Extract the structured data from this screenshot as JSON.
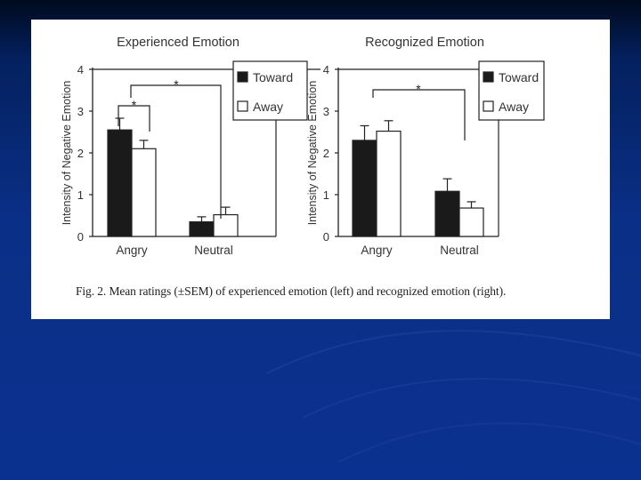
{
  "slide": {
    "background_colors": [
      "#000a1e",
      "#0a2f86"
    ],
    "caption": "Fig. 2. Mean ratings (±SEM) of experienced emotion (left) and recognized emotion (right)."
  },
  "chart_data": [
    {
      "type": "bar",
      "title": "Experienced Emotion",
      "ylabel": "Intensity of Negative Emotion",
      "xlabel": "",
      "categories": [
        "Angry",
        "Neutral"
      ],
      "yticks": [
        "0",
        "1",
        "2",
        "3",
        "4"
      ],
      "ylim": [
        0,
        4
      ],
      "series": [
        {
          "name": "Toward",
          "color": "#1a1a1a",
          "values": [
            2.55,
            0.35
          ],
          "errors": [
            0.28,
            0.12
          ]
        },
        {
          "name": "Away",
          "color": "#ffffff",
          "values": [
            2.1,
            0.52
          ],
          "errors": [
            0.2,
            0.18
          ]
        }
      ],
      "legend": "top-right",
      "annotations": [
        {
          "text": "*",
          "between": "Angry-Toward / Angry-Away"
        },
        {
          "text": "*",
          "between": "Angry-Toward / Neutral-Toward"
        }
      ]
    },
    {
      "type": "bar",
      "title": "Recognized Emotion",
      "ylabel": "Intensity of Negative Emotion",
      "xlabel": "",
      "categories": [
        "Angry",
        "Neutral"
      ],
      "yticks": [
        "0",
        "1",
        "2",
        "3",
        "4"
      ],
      "ylim": [
        0,
        4
      ],
      "series": [
        {
          "name": "Toward",
          "color": "#1a1a1a",
          "values": [
            2.3,
            1.08
          ],
          "errors": [
            0.35,
            0.3
          ]
        },
        {
          "name": "Away",
          "color": "#ffffff",
          "values": [
            2.52,
            0.68
          ],
          "errors": [
            0.25,
            0.15
          ]
        }
      ],
      "legend": "top-right",
      "annotations": [
        {
          "text": "*",
          "between": "Angry / Neutral"
        }
      ]
    }
  ]
}
